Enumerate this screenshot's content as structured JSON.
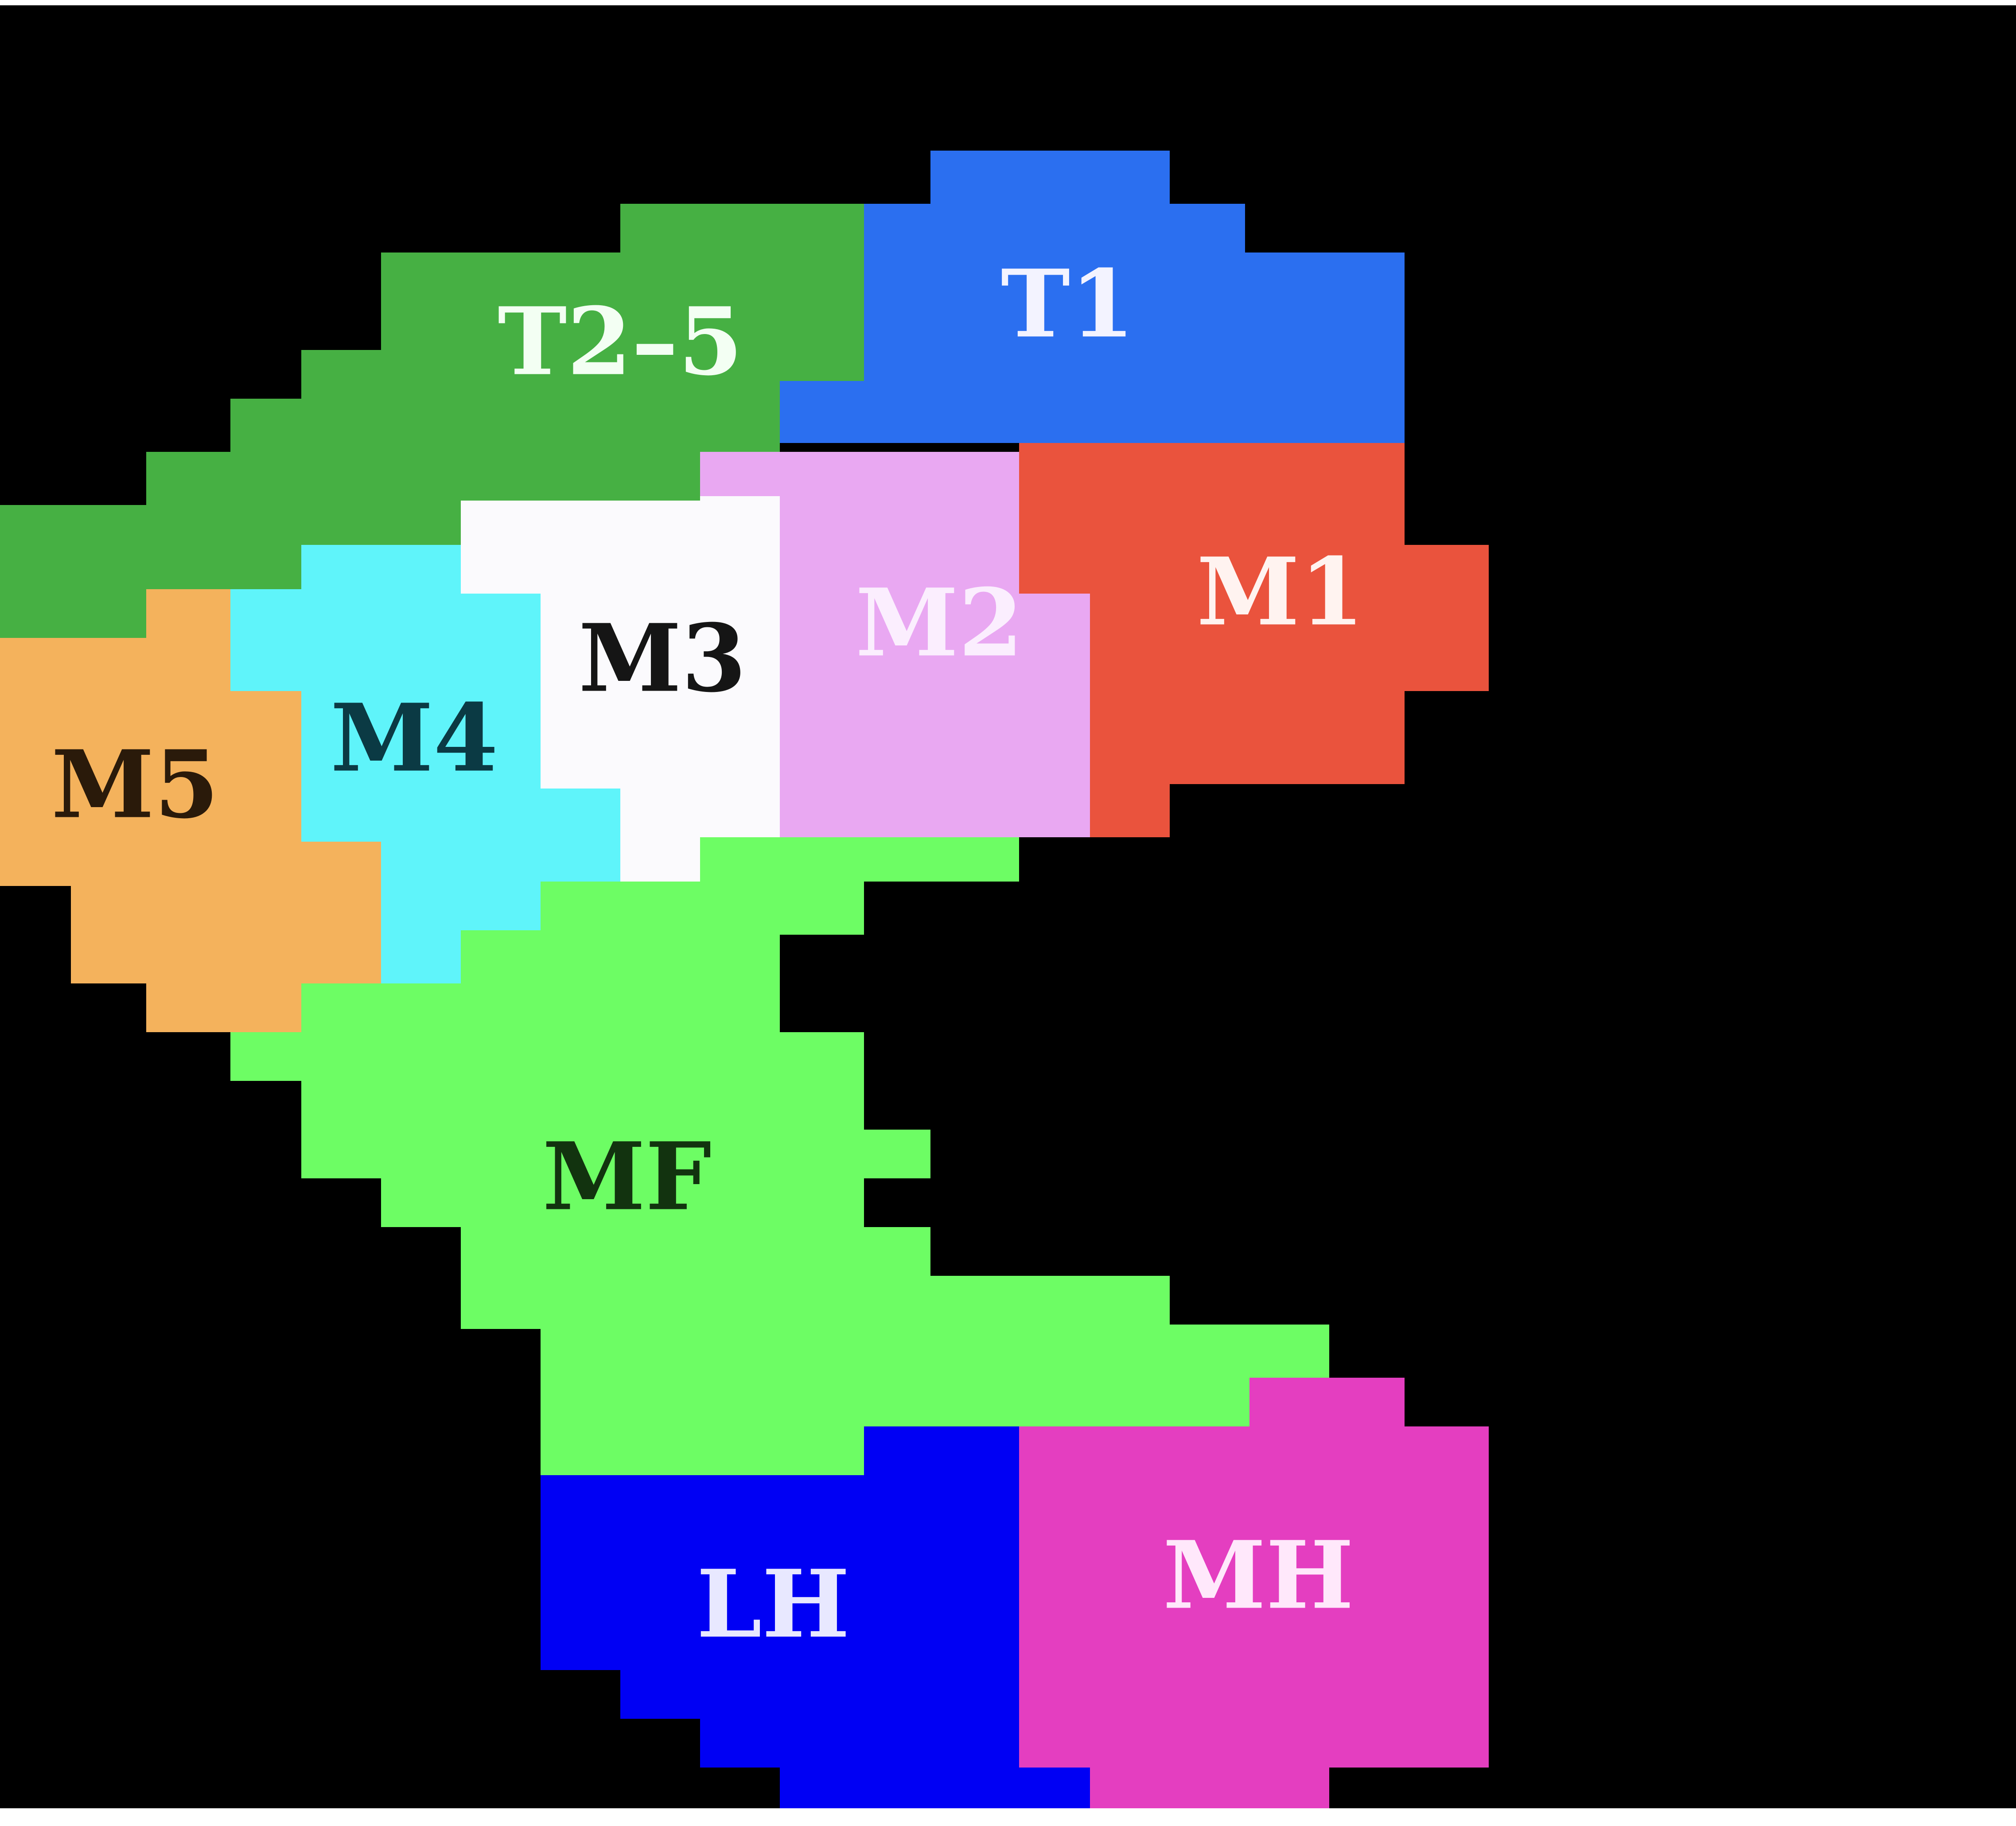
{
  "regions": [
    {
      "id": "T1",
      "label": "T1",
      "fill": "#2b6ff0",
      "label_color": "#f3f3ff"
    },
    {
      "id": "T2-5",
      "label": "T2–5",
      "fill": "#46b043",
      "label_color": "#f3fff3"
    },
    {
      "id": "M1",
      "label": "M1",
      "fill": "#ea533d",
      "label_color": "#fff3f0"
    },
    {
      "id": "M2",
      "label": "M2",
      "fill": "#e9a8f2",
      "label_color": "#fbeefe"
    },
    {
      "id": "M3",
      "label": "M3",
      "fill": "#fbfafd",
      "label_color": "#151515"
    },
    {
      "id": "M4",
      "label": "M4",
      "fill": "#5ff4fa",
      "label_color": "#0b3a44"
    },
    {
      "id": "M5",
      "label": "M5",
      "fill": "#f4b25c",
      "label_color": "#2a1a0a"
    },
    {
      "id": "MF",
      "label": "MF",
      "fill": "#6dfd64",
      "label_color": "#12330f"
    },
    {
      "id": "LH",
      "label": "LH",
      "fill": "#0000f4",
      "label_color": "#e8e8ff"
    },
    {
      "id": "MH",
      "label": "MH",
      "fill": "#e43ec0",
      "label_color": "#ffe8fb"
    }
  ],
  "background_color": "#000000"
}
